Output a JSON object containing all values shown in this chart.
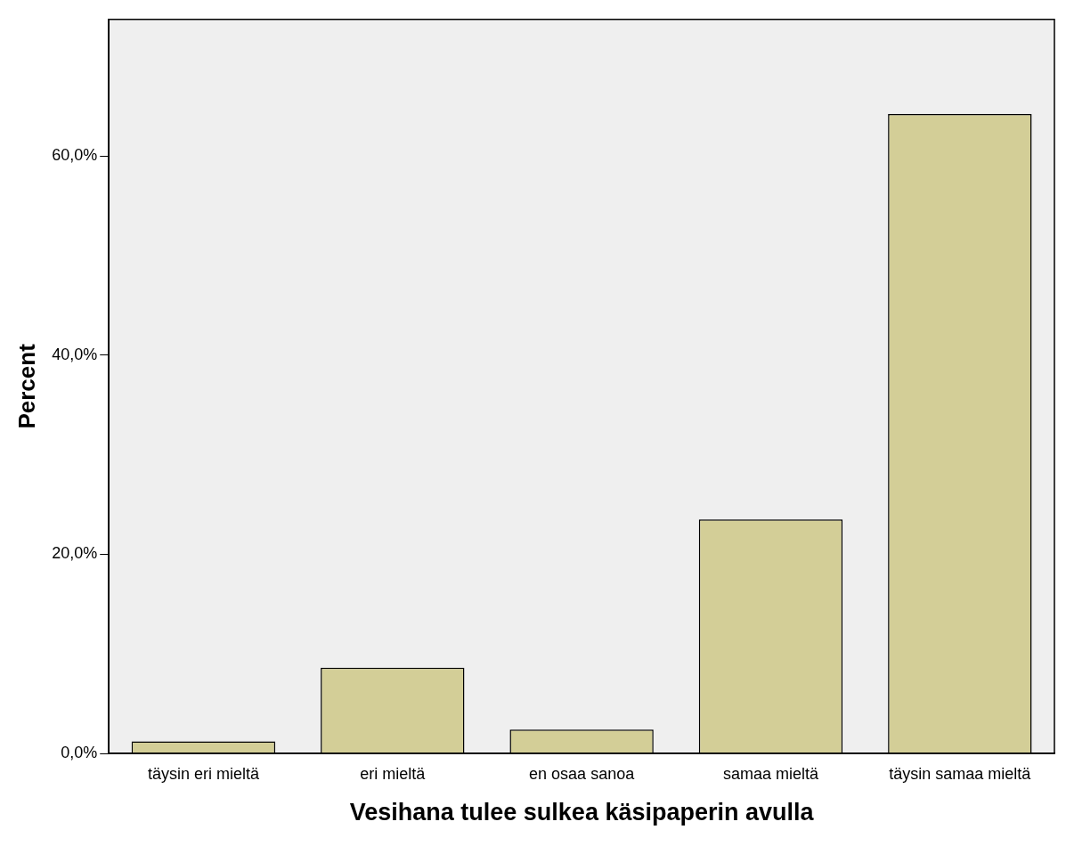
{
  "chart_data": {
    "type": "bar",
    "xlabel": "Vesihana tulee sulkea käsipaperin avulla",
    "ylabel": "Percent",
    "categories": [
      "täysin eri mieltä",
      "eri mieltä",
      "en osaa sanoa",
      "samaa mieltä",
      "täysin samaa mieltä"
    ],
    "values": [
      1.2,
      8.6,
      2.4,
      23.5,
      64.2
    ],
    "color": "#d3ce97",
    "ylim": [
      0,
      73.7
    ],
    "yticks": [
      {
        "value": 0,
        "label": "0,0%"
      },
      {
        "value": 20,
        "label": "20,0%"
      },
      {
        "value": 40,
        "label": "40,0%"
      },
      {
        "value": 60,
        "label": "60,0%"
      }
    ],
    "grid": false,
    "legend": false
  }
}
